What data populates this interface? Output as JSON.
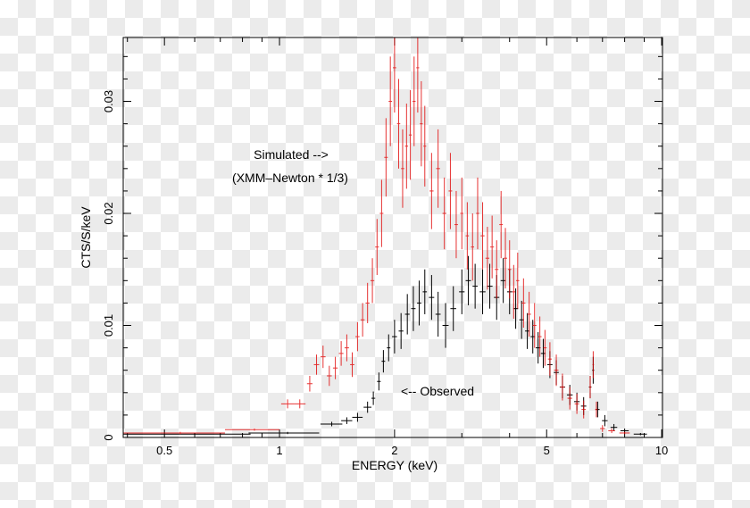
{
  "chart_data": {
    "type": "scatter",
    "title": "",
    "xlabel": "ENERGY (keV)",
    "ylabel": "CTS/S/keV",
    "xscale": "log",
    "xlim": [
      0.39,
      10.05
    ],
    "ylim": [
      0,
      0.0357
    ],
    "xticks": [
      {
        "v": 0.5,
        "label": "0.5"
      },
      {
        "v": 1,
        "label": "1"
      },
      {
        "v": 2,
        "label": "2"
      },
      {
        "v": 5,
        "label": "5"
      },
      {
        "v": 10,
        "label": "10"
      }
    ],
    "xminor": [
      0.4,
      0.6,
      0.7,
      0.8,
      0.9,
      3,
      4,
      6,
      7,
      8,
      9
    ],
    "yticks": [
      {
        "v": 0,
        "label": "0"
      },
      {
        "v": 0.01,
        "label": "0.01"
      },
      {
        "v": 0.02,
        "label": "0.02"
      },
      {
        "v": 0.03,
        "label": "0.03"
      }
    ],
    "yminor_step": 0.002,
    "grid": false,
    "annotations": [
      "Simulated -->",
      "(XMM–Newton * 1/3)",
      "<-- Observed"
    ],
    "series": [
      {
        "name": "Observed",
        "color": "#000000",
        "points_format": "[x, xerr, y, yerr]",
        "points": [
          [
            0.6,
            0.24,
            0.0003,
            0.0001
          ],
          [
            1.05,
            0.22,
            0.0004,
            0.0001
          ],
          [
            1.37,
            0.09,
            0.0012,
            0.0002
          ],
          [
            1.5,
            0.05,
            0.0015,
            0.0003
          ],
          [
            1.6,
            0.05,
            0.0018,
            0.0004
          ],
          [
            1.7,
            0.04,
            0.0027,
            0.0005
          ],
          [
            1.76,
            0.02,
            0.0035,
            0.0006
          ],
          [
            1.82,
            0.02,
            0.005,
            0.0008
          ],
          [
            1.87,
            0.02,
            0.0068,
            0.001
          ],
          [
            1.93,
            0.02,
            0.008,
            0.0012
          ],
          [
            2.0,
            0.03,
            0.009,
            0.0015
          ],
          [
            2.08,
            0.03,
            0.0095,
            0.0016
          ],
          [
            2.16,
            0.03,
            0.011,
            0.0018
          ],
          [
            2.24,
            0.03,
            0.0115,
            0.002
          ],
          [
            2.32,
            0.03,
            0.012,
            0.002
          ],
          [
            2.4,
            0.03,
            0.013,
            0.002
          ],
          [
            2.5,
            0.04,
            0.0125,
            0.002
          ],
          [
            2.6,
            0.04,
            0.011,
            0.002
          ],
          [
            2.72,
            0.05,
            0.01,
            0.002
          ],
          [
            2.85,
            0.05,
            0.0115,
            0.002
          ],
          [
            3.0,
            0.05,
            0.013,
            0.002
          ],
          [
            3.12,
            0.05,
            0.014,
            0.0022
          ],
          [
            3.25,
            0.05,
            0.0135,
            0.002
          ],
          [
            3.4,
            0.06,
            0.013,
            0.002
          ],
          [
            3.55,
            0.06,
            0.0135,
            0.002
          ],
          [
            3.7,
            0.06,
            0.0125,
            0.002
          ],
          [
            3.85,
            0.06,
            0.014,
            0.002
          ],
          [
            4.0,
            0.06,
            0.013,
            0.002
          ],
          [
            4.15,
            0.06,
            0.0115,
            0.0018
          ],
          [
            4.3,
            0.06,
            0.0105,
            0.0017
          ],
          [
            4.45,
            0.06,
            0.0095,
            0.0016
          ],
          [
            4.6,
            0.06,
            0.009,
            0.0015
          ],
          [
            4.75,
            0.07,
            0.008,
            0.0014
          ],
          [
            4.9,
            0.07,
            0.0075,
            0.0013
          ],
          [
            5.1,
            0.08,
            0.0065,
            0.0012
          ],
          [
            5.3,
            0.08,
            0.0058,
            0.0011
          ],
          [
            5.5,
            0.09,
            0.0045,
            0.001
          ],
          [
            5.75,
            0.1,
            0.0038,
            0.0009
          ],
          [
            6.0,
            0.1,
            0.0032,
            0.0008
          ],
          [
            6.25,
            0.1,
            0.0028,
            0.0008
          ],
          [
            6.5,
            0.05,
            0.0045,
            0.001
          ],
          [
            6.62,
            0.04,
            0.006,
            0.0012
          ],
          [
            6.8,
            0.08,
            0.0025,
            0.0007
          ],
          [
            7.1,
            0.12,
            0.0015,
            0.0005
          ],
          [
            7.5,
            0.15,
            0.0009,
            0.0003
          ],
          [
            8.0,
            0.2,
            0.0006,
            0.0002
          ],
          [
            8.8,
            0.35,
            0.0003,
            0.0001
          ]
        ]
      },
      {
        "name": "Simulated",
        "color": "#e00000",
        "points_format": "[x, xerr, y, yerr]",
        "points": [
          [
            0.55,
            0.17,
            0.0004,
            0.0001
          ],
          [
            0.86,
            0.14,
            0.0007,
            0.0001
          ],
          [
            1.05,
            0.04,
            0.003,
            0.0004
          ],
          [
            1.13,
            0.04,
            0.003,
            0.0004
          ],
          [
            1.2,
            0.02,
            0.0048,
            0.0007
          ],
          [
            1.25,
            0.02,
            0.0065,
            0.0009
          ],
          [
            1.3,
            0.02,
            0.0072,
            0.001
          ],
          [
            1.35,
            0.02,
            0.0055,
            0.0009
          ],
          [
            1.4,
            0.02,
            0.0062,
            0.001
          ],
          [
            1.45,
            0.02,
            0.0075,
            0.0011
          ],
          [
            1.5,
            0.02,
            0.008,
            0.0012
          ],
          [
            1.55,
            0.02,
            0.0065,
            0.0011
          ],
          [
            1.6,
            0.02,
            0.009,
            0.0013
          ],
          [
            1.65,
            0.02,
            0.0105,
            0.0015
          ],
          [
            1.7,
            0.02,
            0.012,
            0.0018
          ],
          [
            1.75,
            0.02,
            0.014,
            0.002
          ],
          [
            1.8,
            0.02,
            0.017,
            0.0025
          ],
          [
            1.85,
            0.02,
            0.02,
            0.003
          ],
          [
            1.9,
            0.02,
            0.025,
            0.0035
          ],
          [
            1.95,
            0.02,
            0.03,
            0.004
          ],
          [
            2.0,
            0.02,
            0.033,
            0.004
          ],
          [
            2.05,
            0.02,
            0.028,
            0.004
          ],
          [
            2.1,
            0.02,
            0.024,
            0.0035
          ],
          [
            2.15,
            0.02,
            0.026,
            0.0038
          ],
          [
            2.2,
            0.02,
            0.027,
            0.004
          ],
          [
            2.25,
            0.02,
            0.03,
            0.004
          ],
          [
            2.3,
            0.02,
            0.033,
            0.004
          ],
          [
            2.35,
            0.02,
            0.028,
            0.0038
          ],
          [
            2.4,
            0.02,
            0.026,
            0.0036
          ],
          [
            2.5,
            0.03,
            0.022,
            0.0034
          ],
          [
            2.6,
            0.03,
            0.024,
            0.0035
          ],
          [
            2.7,
            0.03,
            0.02,
            0.0032
          ],
          [
            2.8,
            0.03,
            0.022,
            0.0034
          ],
          [
            2.9,
            0.03,
            0.019,
            0.003
          ],
          [
            3.0,
            0.03,
            0.02,
            0.0032
          ],
          [
            3.1,
            0.03,
            0.018,
            0.003
          ],
          [
            3.2,
            0.03,
            0.017,
            0.003
          ],
          [
            3.3,
            0.03,
            0.02,
            0.0032
          ],
          [
            3.4,
            0.04,
            0.018,
            0.003
          ],
          [
            3.5,
            0.04,
            0.016,
            0.0028
          ],
          [
            3.6,
            0.04,
            0.017,
            0.0028
          ],
          [
            3.7,
            0.04,
            0.015,
            0.0026
          ],
          [
            3.8,
            0.04,
            0.019,
            0.003
          ],
          [
            3.9,
            0.04,
            0.016,
            0.0027
          ],
          [
            4.0,
            0.04,
            0.015,
            0.0026
          ],
          [
            4.1,
            0.04,
            0.013,
            0.0024
          ],
          [
            4.2,
            0.04,
            0.014,
            0.0025
          ],
          [
            4.35,
            0.05,
            0.012,
            0.0022
          ],
          [
            4.5,
            0.05,
            0.011,
            0.002
          ],
          [
            4.65,
            0.05,
            0.01,
            0.002
          ],
          [
            4.8,
            0.05,
            0.009,
            0.0018
          ],
          [
            4.95,
            0.05,
            0.008,
            0.0016
          ],
          [
            5.1,
            0.06,
            0.007,
            0.0015
          ],
          [
            5.3,
            0.07,
            0.006,
            0.0014
          ],
          [
            5.5,
            0.07,
            0.0045,
            0.0012
          ],
          [
            5.75,
            0.08,
            0.0035,
            0.001
          ],
          [
            6.0,
            0.08,
            0.003,
            0.0009
          ],
          [
            6.25,
            0.08,
            0.0025,
            0.0008
          ],
          [
            6.5,
            0.04,
            0.0045,
            0.001
          ],
          [
            6.62,
            0.03,
            0.0065,
            0.0012
          ],
          [
            6.75,
            0.05,
            0.0025,
            0.0007
          ],
          [
            7.0,
            0.1,
            0.0008,
            0.0003
          ],
          [
            7.4,
            0.15,
            0.0006,
            0.0002
          ],
          [
            8.0,
            0.25,
            0.0004,
            0.0001
          ]
        ]
      }
    ]
  }
}
